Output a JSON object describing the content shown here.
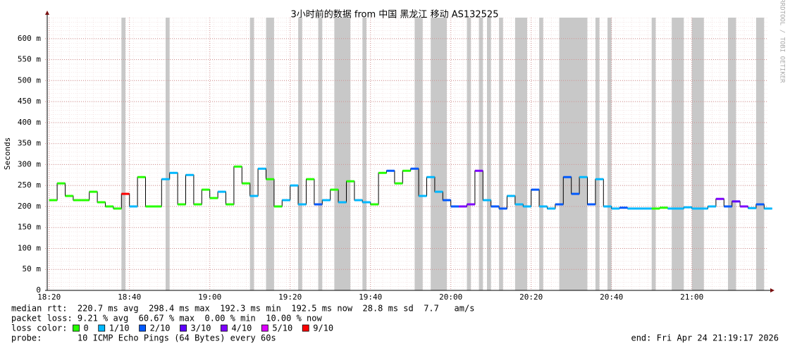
{
  "chart_data": {
    "type": "smokeping",
    "title": "3小时前的数据 from 中国 黑龙江 移动 AS132525",
    "y_label": "Seconds",
    "watermark": "RRDTOOL / TOBI OETIKER",
    "xlim": [
      "18:19",
      "21:19"
    ],
    "xticks": [
      "18:20",
      "18:40",
      "19:00",
      "19:20",
      "19:40",
      "20:00",
      "20:20",
      "20:40",
      "21:00"
    ],
    "ylim": [
      0,
      650
    ],
    "yticks": [
      0,
      {
        "value": 50,
        "label": "50 m"
      },
      {
        "value": 100,
        "label": "100 m"
      },
      {
        "value": 150,
        "label": "150 m"
      },
      {
        "value": 200,
        "label": "200 m"
      },
      {
        "value": 250,
        "label": "250 m"
      },
      {
        "value": 300,
        "label": "300 m"
      },
      {
        "value": 350,
        "label": "350 m"
      },
      {
        "value": 400,
        "label": "400 m"
      },
      {
        "value": 450,
        "label": "450 m"
      },
      {
        "value": 500,
        "label": "500 m"
      },
      {
        "value": 550,
        "label": "550 m"
      },
      {
        "value": 600,
        "label": "600 m"
      }
    ],
    "grid": true,
    "x": [
      "18:20",
      "18:22",
      "18:24",
      "18:26",
      "18:28",
      "18:30",
      "18:32",
      "18:34",
      "18:36",
      "18:38",
      "18:40",
      "18:42",
      "18:44",
      "18:46",
      "18:48",
      "18:50",
      "18:52",
      "18:54",
      "18:56",
      "18:58",
      "19:00",
      "19:02",
      "19:04",
      "19:06",
      "19:08",
      "19:10",
      "19:12",
      "19:14",
      "19:16",
      "19:18",
      "19:20",
      "19:22",
      "19:24",
      "19:26",
      "19:28",
      "19:30",
      "19:32",
      "19:34",
      "19:36",
      "19:38",
      "19:40",
      "19:42",
      "19:44",
      "19:46",
      "19:48",
      "19:50",
      "19:52",
      "19:54",
      "19:56",
      "19:58",
      "20:00",
      "20:02",
      "20:04",
      "20:06",
      "20:08",
      "20:10",
      "20:12",
      "20:14",
      "20:16",
      "20:18",
      "20:20",
      "20:22",
      "20:24",
      "20:26",
      "20:28",
      "20:30",
      "20:32",
      "20:34",
      "20:36",
      "20:38",
      "20:40",
      "20:42",
      "20:44",
      "20:46",
      "20:48",
      "20:50",
      "20:52",
      "20:54",
      "20:56",
      "20:58",
      "21:00",
      "21:02",
      "21:04",
      "21:06",
      "21:08",
      "21:10",
      "21:12",
      "21:14",
      "21:16",
      "21:18"
    ],
    "median": [
      215,
      255,
      225,
      215,
      215,
      235,
      210,
      200,
      195,
      230,
      200,
      270,
      200,
      200,
      265,
      280,
      205,
      275,
      205,
      240,
      220,
      235,
      205,
      295,
      255,
      225,
      290,
      265,
      200,
      215,
      250,
      205,
      265,
      205,
      215,
      240,
      210,
      260,
      215,
      210,
      205,
      280,
      285,
      255,
      285,
      290,
      225,
      270,
      235,
      215,
      200,
      200,
      205,
      285,
      215,
      200,
      195,
      225,
      205,
      200,
      240,
      200,
      195,
      205,
      270,
      230,
      270,
      205,
      265,
      200,
      195,
      197,
      195,
      195,
      195,
      195,
      197,
      195,
      195,
      198,
      195,
      195,
      200,
      218,
      200,
      212,
      200,
      196,
      205,
      195
    ],
    "loss": [
      0,
      0,
      0,
      0,
      0,
      0,
      0,
      0,
      0,
      9,
      1,
      0,
      0,
      0,
      1,
      1,
      0,
      1,
      0,
      0,
      0,
      1,
      0,
      0,
      0,
      1,
      1,
      0,
      0,
      1,
      1,
      1,
      0,
      2,
      1,
      0,
      1,
      0,
      1,
      1,
      0,
      0,
      2,
      0,
      0,
      2,
      1,
      1,
      1,
      2,
      2,
      4,
      4,
      4,
      1,
      2,
      2,
      1,
      1,
      1,
      2,
      1,
      1,
      2,
      2,
      2,
      1,
      2,
      1,
      1,
      1,
      2,
      1,
      1,
      1,
      0,
      0,
      1,
      1,
      1,
      1,
      1,
      1,
      4,
      2,
      3,
      4,
      1,
      2,
      1
    ],
    "unknown_periods": [
      [
        "18:38",
        "18:39"
      ],
      [
        "18:49",
        "18:50"
      ],
      [
        "19:10",
        "19:11"
      ],
      [
        "19:14",
        "19:16"
      ],
      [
        "19:22",
        "19:23"
      ],
      [
        "19:27",
        "19:28"
      ],
      [
        "19:31",
        "19:35"
      ],
      [
        "19:38",
        "19:39"
      ],
      [
        "19:51",
        "19:53"
      ],
      [
        "19:55",
        "19:59"
      ],
      [
        "20:04",
        "20:05"
      ],
      [
        "20:07",
        "20:08"
      ],
      [
        "20:09",
        "20:10"
      ],
      [
        "20:12",
        "20:13"
      ],
      [
        "20:16",
        "20:19"
      ],
      [
        "20:22",
        "20:23"
      ],
      [
        "20:27",
        "20:34"
      ],
      [
        "20:36",
        "20:37"
      ],
      [
        "20:39",
        "20:40"
      ],
      [
        "20:50",
        "20:51"
      ],
      [
        "20:55",
        "20:58"
      ],
      [
        "21:00",
        "21:03"
      ],
      [
        "21:09",
        "21:11"
      ],
      [
        "21:16",
        "21:18"
      ]
    ],
    "loss_legend_title": "loss color:",
    "loss_legend": [
      {
        "value": 0,
        "label": "0",
        "color": "#26ff00"
      },
      {
        "value": 1,
        "label": "1/10",
        "color": "#00b8ff"
      },
      {
        "value": 2,
        "label": "2/10",
        "color": "#0059ff"
      },
      {
        "value": 3,
        "label": "3/10",
        "color": "#5e00ff"
      },
      {
        "value": 4,
        "label": "4/10",
        "color": "#7e00ff"
      },
      {
        "value": 5,
        "label": "5/10",
        "color": "#dd00ff"
      },
      {
        "value": 9,
        "label": "9/10",
        "color": "#ff0000"
      }
    ],
    "stats": [
      "median rtt:  220.7 ms avg  298.4 ms max  192.3 ms min  192.5 ms now  28.8 ms sd  7.7   am/s",
      "packet loss: 9.21 % avg  60.67 % max  0.00 % min  10.00 % now"
    ],
    "probe": "probe:       10 ICMP Echo Pings (64 Bytes) every 60s",
    "end": "end: Fri Apr 24 21:19:17 2026"
  }
}
